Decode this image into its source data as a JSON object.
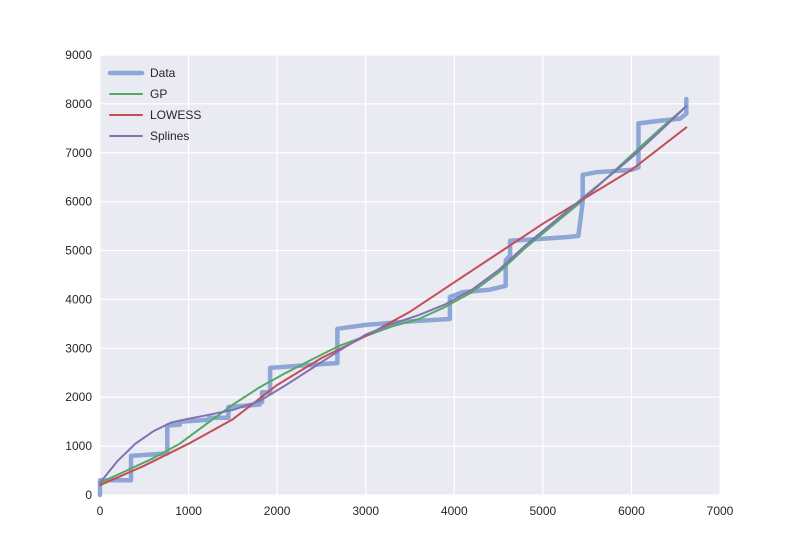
{
  "chart_data": {
    "type": "line",
    "title": "",
    "xlabel": "",
    "ylabel": "",
    "xlim": [
      0,
      7000
    ],
    "ylim": [
      0,
      9000
    ],
    "xticks": [
      0,
      1000,
      2000,
      3000,
      4000,
      5000,
      6000,
      7000
    ],
    "yticks": [
      0,
      1000,
      2000,
      3000,
      4000,
      5000,
      6000,
      7000,
      8000,
      9000
    ],
    "grid": true,
    "legend_position": "top-left",
    "series": [
      {
        "name": "Data",
        "color": "#8EA6D6",
        "style": "step-thick",
        "points": [
          [
            0,
            0
          ],
          [
            0,
            300
          ],
          [
            350,
            300
          ],
          [
            350,
            800
          ],
          [
            760,
            850
          ],
          [
            760,
            1420
          ],
          [
            900,
            1440
          ],
          [
            900,
            1500
          ],
          [
            1230,
            1540
          ],
          [
            1230,
            1580
          ],
          [
            1450,
            1580
          ],
          [
            1450,
            1800
          ],
          [
            1800,
            1850
          ],
          [
            1800,
            1900
          ],
          [
            1830,
            1900
          ],
          [
            1830,
            2100
          ],
          [
            1920,
            2100
          ],
          [
            1920,
            2600
          ],
          [
            2680,
            2700
          ],
          [
            2680,
            3400
          ],
          [
            3000,
            3480
          ],
          [
            3500,
            3550
          ],
          [
            3950,
            3600
          ],
          [
            3950,
            4050
          ],
          [
            4100,
            4150
          ],
          [
            4400,
            4200
          ],
          [
            4580,
            4280
          ],
          [
            4580,
            4800
          ],
          [
            4630,
            4900
          ],
          [
            4630,
            5200
          ],
          [
            5000,
            5240
          ],
          [
            5300,
            5280
          ],
          [
            5400,
            5300
          ],
          [
            5430,
            5700
          ],
          [
            5450,
            6000
          ],
          [
            5450,
            6550
          ],
          [
            5600,
            6600
          ],
          [
            6000,
            6650
          ],
          [
            6080,
            6700
          ],
          [
            6080,
            7600
          ],
          [
            6300,
            7650
          ],
          [
            6550,
            7700
          ],
          [
            6620,
            7800
          ],
          [
            6620,
            8100
          ]
        ]
      },
      {
        "name": "GP",
        "color": "#55A868",
        "style": "line",
        "points": [
          [
            0,
            250
          ],
          [
            300,
            500
          ],
          [
            600,
            750
          ],
          [
            900,
            1050
          ],
          [
            1200,
            1450
          ],
          [
            1500,
            1850
          ],
          [
            1800,
            2200
          ],
          [
            2100,
            2500
          ],
          [
            2400,
            2780
          ],
          [
            2700,
            3050
          ],
          [
            3000,
            3250
          ],
          [
            3300,
            3450
          ],
          [
            3600,
            3600
          ],
          [
            3900,
            3850
          ],
          [
            4200,
            4150
          ],
          [
            4500,
            4550
          ],
          [
            4800,
            5050
          ],
          [
            5100,
            5500
          ],
          [
            5400,
            5950
          ],
          [
            5700,
            6450
          ],
          [
            6000,
            6950
          ],
          [
            6300,
            7450
          ],
          [
            6620,
            7950
          ]
        ]
      },
      {
        "name": "LOWESS",
        "color": "#C44E52",
        "style": "line",
        "points": [
          [
            0,
            200
          ],
          [
            500,
            600
          ],
          [
            1000,
            1050
          ],
          [
            1500,
            1550
          ],
          [
            2000,
            2250
          ],
          [
            2500,
            2800
          ],
          [
            3000,
            3250
          ],
          [
            3500,
            3750
          ],
          [
            4000,
            4350
          ],
          [
            4500,
            4950
          ],
          [
            5000,
            5550
          ],
          [
            5500,
            6100
          ],
          [
            6000,
            6650
          ],
          [
            6620,
            7520
          ]
        ]
      },
      {
        "name": "Splines",
        "color": "#8172B2",
        "style": "line",
        "points": [
          [
            0,
            250
          ],
          [
            200,
            700
          ],
          [
            400,
            1050
          ],
          [
            600,
            1300
          ],
          [
            800,
            1480
          ],
          [
            1000,
            1560
          ],
          [
            1200,
            1630
          ],
          [
            1500,
            1740
          ],
          [
            1800,
            1920
          ],
          [
            2100,
            2250
          ],
          [
            2400,
            2600
          ],
          [
            2700,
            2950
          ],
          [
            3000,
            3280
          ],
          [
            3300,
            3500
          ],
          [
            3600,
            3680
          ],
          [
            3900,
            3900
          ],
          [
            4200,
            4200
          ],
          [
            4500,
            4600
          ],
          [
            4800,
            5100
          ],
          [
            5100,
            5550
          ],
          [
            5400,
            6000
          ],
          [
            5700,
            6450
          ],
          [
            6000,
            6900
          ],
          [
            6300,
            7400
          ],
          [
            6620,
            7950
          ]
        ]
      }
    ]
  }
}
